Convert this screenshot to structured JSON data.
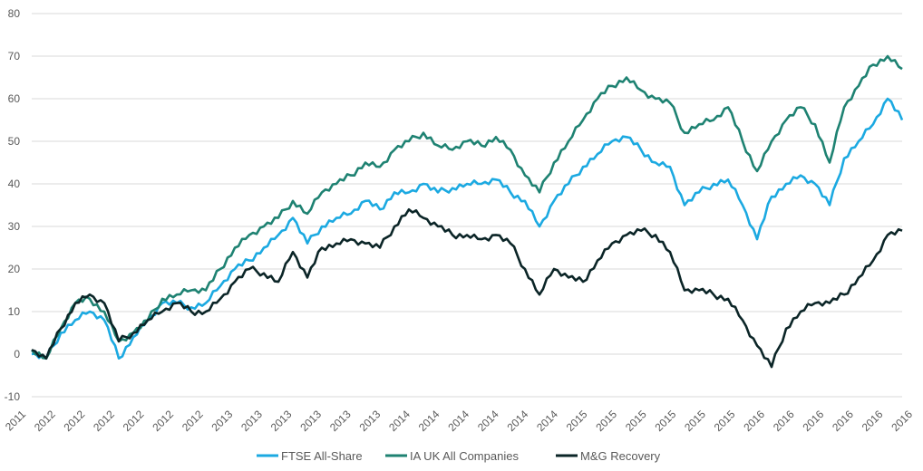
{
  "chart_data": {
    "type": "line",
    "title": "",
    "xlabel": "",
    "ylabel": "",
    "ylim": [
      -10,
      80
    ],
    "yticks": [
      -10,
      0,
      10,
      20,
      30,
      40,
      50,
      60,
      70,
      80
    ],
    "grid": true,
    "legend_position": "bottom",
    "xtick_labels": [
      "2011",
      "2012",
      "2012",
      "2012",
      "2012",
      "2012",
      "2012",
      "2013",
      "2013",
      "2013",
      "2013",
      "2013",
      "2013",
      "2014",
      "2014",
      "2014",
      "2014",
      "2014",
      "2014",
      "2015",
      "2015",
      "2015",
      "2015",
      "2015",
      "2015",
      "2016",
      "2016",
      "2016",
      "2016",
      "2016",
      "2016"
    ],
    "series": [
      {
        "name": "FTSE All-Share",
        "color": "#1BA9E1",
        "values": [
          0,
          -1,
          5,
          8,
          10,
          8,
          -1,
          4,
          8,
          12,
          12,
          11,
          12,
          16,
          20,
          22,
          25,
          28,
          32,
          26,
          30,
          32,
          33,
          36,
          34,
          38,
          38,
          40,
          38,
          39,
          40,
          40,
          41,
          38,
          36,
          30,
          36,
          40,
          44,
          47,
          50,
          51,
          48,
          45,
          44,
          35,
          38,
          40,
          41,
          35,
          27,
          37,
          40,
          42,
          40,
          35,
          46,
          50,
          54,
          60,
          55
        ]
      },
      {
        "name": "IA UK All Companies",
        "color": "#1E8272",
        "values": [
          1,
          -1,
          6,
          12,
          13,
          10,
          3,
          5,
          8,
          13,
          14,
          15,
          15,
          20,
          25,
          28,
          30,
          32,
          36,
          33,
          38,
          40,
          42,
          45,
          44,
          48,
          50,
          52,
          49,
          48,
          50,
          49,
          51,
          48,
          42,
          38,
          45,
          50,
          55,
          60,
          63,
          65,
          62,
          60,
          59,
          52,
          54,
          55,
          58,
          50,
          43,
          50,
          55,
          58,
          54,
          45,
          58,
          63,
          68,
          70,
          67
        ]
      },
      {
        "name": "M&G Recovery",
        "color": "#0B2527",
        "values": [
          1,
          -1,
          6,
          12,
          14,
          12,
          3,
          5,
          8,
          10,
          12,
          10,
          10,
          13,
          17,
          20,
          19,
          17,
          24,
          18,
          25,
          26,
          27,
          26,
          25,
          30,
          34,
          32,
          30,
          28,
          28,
          27,
          28,
          26,
          20,
          14,
          20,
          18,
          17,
          22,
          26,
          28,
          29,
          28,
          24,
          15,
          15,
          14,
          13,
          8,
          2,
          -3,
          6,
          10,
          12,
          12,
          14,
          18,
          22,
          28,
          29
        ]
      }
    ]
  }
}
